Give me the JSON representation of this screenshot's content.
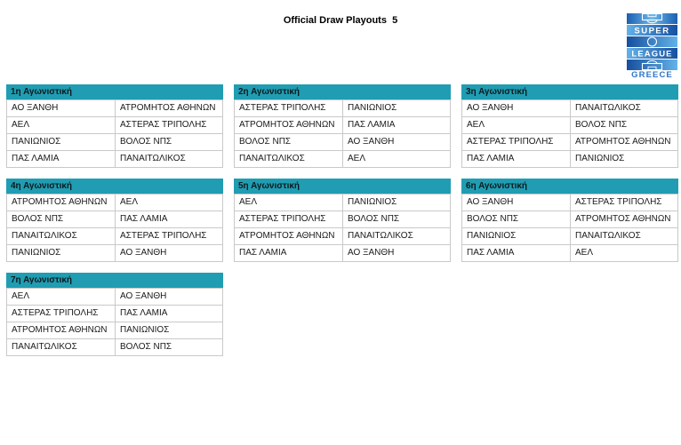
{
  "title": "Official Draw Playouts  5",
  "accent_color": "#209db2",
  "logo": {
    "line1": "SUPER",
    "line2": "LEAGUE",
    "line3": "GREECE"
  },
  "tables": [
    {
      "header": "1η Αγωνιστική",
      "rows": [
        [
          "ΑΟ ΞΑΝΘΗ",
          "ΑΤΡΟΜΗΤΟΣ ΑΘΗΝΩΝ"
        ],
        [
          "ΑΕΛ",
          "ΑΣΤΕΡΑΣ ΤΡΙΠΟΛΗΣ"
        ],
        [
          "ΠΑΝΙΩΝΙΟΣ",
          "ΒΟΛΟΣ ΝΠΣ"
        ],
        [
          "ΠΑΣ ΛΑΜΙΑ",
          "ΠΑΝΑΙΤΩΛΙΚΟΣ"
        ]
      ]
    },
    {
      "header": "2η Αγωνιστική",
      "rows": [
        [
          "ΑΣΤΕΡΑΣ ΤΡΙΠΟΛΗΣ",
          "ΠΑΝΙΩΝΙΟΣ"
        ],
        [
          "ΑΤΡΟΜΗΤΟΣ ΑΘΗΝΩΝ",
          "ΠΑΣ ΛΑΜΙΑ"
        ],
        [
          "ΒΟΛΟΣ ΝΠΣ",
          "ΑΟ ΞΑΝΘΗ"
        ],
        [
          "ΠΑΝΑΙΤΩΛΙΚΟΣ",
          "ΑΕΛ"
        ]
      ]
    },
    {
      "header": "3η Αγωνιστική",
      "rows": [
        [
          "ΑΟ ΞΑΝΘΗ",
          "ΠΑΝΑΙΤΩΛΙΚΟΣ"
        ],
        [
          "ΑΕΛ",
          "ΒΟΛΟΣ ΝΠΣ"
        ],
        [
          "ΑΣΤΕΡΑΣ ΤΡΙΠΟΛΗΣ",
          "ΑΤΡΟΜΗΤΟΣ ΑΘΗΝΩΝ"
        ],
        [
          "ΠΑΣ ΛΑΜΙΑ",
          "ΠΑΝΙΩΝΙΟΣ"
        ]
      ]
    },
    {
      "header": "4η Αγωνιστική",
      "rows": [
        [
          "ΑΤΡΟΜΗΤΟΣ ΑΘΗΝΩΝ",
          "ΑΕΛ"
        ],
        [
          "ΒΟΛΟΣ ΝΠΣ",
          "ΠΑΣ ΛΑΜΙΑ"
        ],
        [
          "ΠΑΝΑΙΤΩΛΙΚΟΣ",
          "ΑΣΤΕΡΑΣ ΤΡΙΠΟΛΗΣ"
        ],
        [
          "ΠΑΝΙΩΝΙΟΣ",
          "ΑΟ ΞΑΝΘΗ"
        ]
      ]
    },
    {
      "header": "5η Αγωνιστική",
      "rows": [
        [
          "ΑΕΛ",
          "ΠΑΝΙΩΝΙΟΣ"
        ],
        [
          "ΑΣΤΕΡΑΣ ΤΡΙΠΟΛΗΣ",
          "ΒΟΛΟΣ ΝΠΣ"
        ],
        [
          "ΑΤΡΟΜΗΤΟΣ ΑΘΗΝΩΝ",
          "ΠΑΝΑΙΤΩΛΙΚΟΣ"
        ],
        [
          "ΠΑΣ ΛΑΜΙΑ",
          "ΑΟ ΞΑΝΘΗ"
        ]
      ]
    },
    {
      "header": "6η Αγωνιστική",
      "rows": [
        [
          "ΑΟ ΞΑΝΘΗ",
          "ΑΣΤΕΡΑΣ ΤΡΙΠΟΛΗΣ"
        ],
        [
          "ΒΟΛΟΣ ΝΠΣ",
          "ΑΤΡΟΜΗΤΟΣ ΑΘΗΝΩΝ"
        ],
        [
          "ΠΑΝΙΩΝΙΟΣ",
          "ΠΑΝΑΙΤΩΛΙΚΟΣ"
        ],
        [
          "ΠΑΣ ΛΑΜΙΑ",
          "ΑΕΛ"
        ]
      ]
    },
    {
      "header": "7η Αγωνιστική",
      "rows": [
        [
          "ΑΕΛ",
          "ΑΟ ΞΑΝΘΗ"
        ],
        [
          "ΑΣΤΕΡΑΣ ΤΡΙΠΟΛΗΣ",
          "ΠΑΣ ΛΑΜΙΑ"
        ],
        [
          "ΑΤΡΟΜΗΤΟΣ ΑΘΗΝΩΝ",
          "ΠΑΝΙΩΝΙΟΣ"
        ],
        [
          "ΠΑΝΑΙΤΩΛΙΚΟΣ",
          "ΒΟΛΟΣ ΝΠΣ"
        ]
      ]
    }
  ]
}
